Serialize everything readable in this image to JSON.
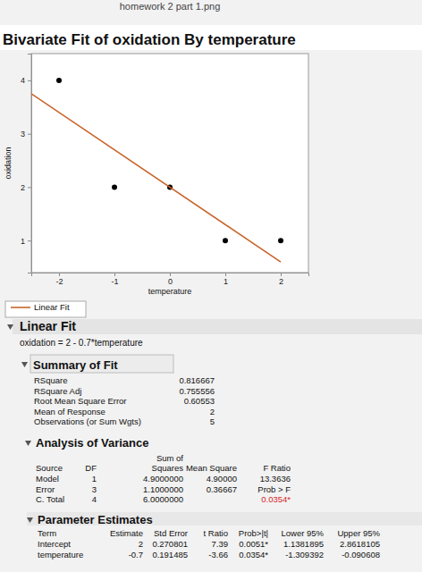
{
  "window_title": "homework 2 part 1.png",
  "chart_data": {
    "type": "scatter",
    "title": "Bivariate Fit of oxidation By temperature",
    "x_label": "temperature",
    "y_label": "oxidation",
    "x": [
      -2,
      -1,
      0,
      1,
      2
    ],
    "series": [
      {
        "type": "scatter",
        "values": [
          4,
          2,
          2,
          1,
          1
        ],
        "color": "#000000",
        "marker": "circle"
      },
      {
        "name": "Linear Fit",
        "type": "line",
        "x": [
          -2.5,
          2
        ],
        "values": [
          3.75,
          0.6
        ],
        "color": "#c8642a",
        "line_style": "solid"
      }
    ],
    "xlim": [
      -2.5,
      2.5
    ],
    "ylim": [
      0.4,
      4.5
    ],
    "xticks": [
      -2,
      -1,
      0,
      1,
      2
    ],
    "yticks": [
      1,
      2,
      3,
      4
    ],
    "grid": false,
    "legend": "bottom-left"
  },
  "report": {
    "fit_title": "Linear Fit",
    "equation": "oxidation = 2 - 0.7*temperature",
    "summary_of_fit": {
      "title": "Summary of Fit",
      "rows": [
        [
          "RSquare",
          "0.816667"
        ],
        [
          "RSquare Adj",
          "0.755556"
        ],
        [
          "Root Mean Square Error",
          "0.60553"
        ],
        [
          "Mean of Response",
          "2"
        ],
        [
          "Observations (or Sum Wgts)",
          "5"
        ]
      ]
    },
    "anova": {
      "title": "Analysis of Variance",
      "header": [
        "Source",
        "DF",
        [
          "Sum of",
          "Squares"
        ],
        "Mean Square",
        "F Ratio"
      ],
      "rows": [
        [
          "Model",
          "1",
          "4.9000000",
          "4.90000",
          "13.3636"
        ],
        [
          "Error",
          "3",
          "1.1000000",
          "0.36667",
          "Prob > F"
        ],
        [
          "C. Total",
          "4",
          "6.0000000",
          null,
          "0.0354*"
        ]
      ]
    },
    "parameter_estimates": {
      "title": "Parameter Estimates",
      "header": [
        "Term",
        "Estimate",
        "Std Error",
        "t Ratio",
        "Prob>|t|",
        "Lower 95%",
        "Upper 95%"
      ],
      "rows": [
        [
          "Intercept",
          "2",
          "0.270801",
          "7.39",
          "0.0051*",
          "1.1381895",
          "2.8618105"
        ],
        [
          "temperature",
          "-0.7",
          "0.191485",
          "-3.66",
          "0.0354*",
          "-1.309392",
          "-0.090608"
        ]
      ]
    }
  }
}
